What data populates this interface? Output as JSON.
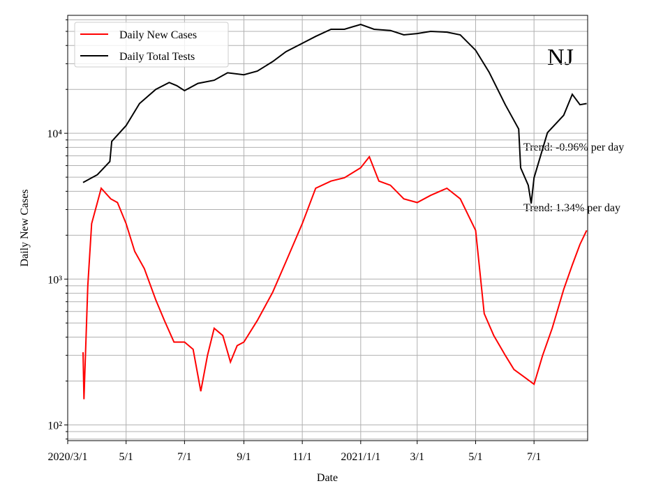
{
  "chart_data": {
    "type": "line",
    "ylabel": "Daily New Cases",
    "xlabel": "Date",
    "annotations": [
      "NJ",
      "Trend: -0.96% per day",
      "Trend: 1.34% per day"
    ],
    "log_y": true,
    "grid": true,
    "legend": "upper left",
    "xlim": [
      "2020-03-01",
      "2021-08-26"
    ],
    "xticks": [
      {
        "value": "2020-03-01",
        "label": "2020/3/1"
      },
      {
        "value": "2020-05-01",
        "label": "5/1"
      },
      {
        "value": "2020-07-01",
        "label": "7/1"
      },
      {
        "value": "2020-09-01",
        "label": "9/1"
      },
      {
        "value": "2020-11-01",
        "label": "11/1"
      },
      {
        "value": "2021-01-01",
        "label": "2021/1/1"
      },
      {
        "value": "2021-03-01",
        "label": "3/1"
      },
      {
        "value": "2021-05-01",
        "label": "5/1"
      },
      {
        "value": "2021-07-01",
        "label": "7/1"
      }
    ],
    "ylim": [
      78,
      64400
    ],
    "yticks": [
      {
        "value": 100,
        "label": "10²"
      },
      {
        "value": 1000,
        "label": "10³"
      },
      {
        "value": 10000,
        "label": "10⁴"
      }
    ],
    "yminorticks": [
      80,
      90,
      200,
      300,
      400,
      500,
      600,
      700,
      800,
      900,
      2000,
      3000,
      4000,
      5000,
      6000,
      7000,
      8000,
      9000,
      20000,
      30000,
      40000,
      50000,
      60000
    ],
    "series": [
      {
        "name": "Daily New Cases",
        "color": "#ff0000",
        "x": [
          "2020-03-17",
          "2020-03-18",
          "2020-03-22",
          "2020-03-26",
          "2020-04-01",
          "2020-04-05",
          "2020-04-15",
          "2020-04-22",
          "2020-05-01",
          "2020-05-10",
          "2020-05-20",
          "2020-06-01",
          "2020-06-10",
          "2020-06-20",
          "2020-07-01",
          "2020-07-10",
          "2020-07-18",
          "2020-07-25",
          "2020-08-01",
          "2020-08-10",
          "2020-08-18",
          "2020-08-25",
          "2020-09-01",
          "2020-09-15",
          "2020-10-01",
          "2020-10-15",
          "2020-11-01",
          "2020-11-15",
          "2020-12-01",
          "2020-12-15",
          "2021-01-01",
          "2021-01-10",
          "2021-01-20",
          "2021-02-01",
          "2021-02-15",
          "2021-03-01",
          "2021-03-15",
          "2021-04-01",
          "2021-04-15",
          "2021-05-01",
          "2021-05-10",
          "2021-05-20",
          "2021-06-01",
          "2021-06-10",
          "2021-06-20",
          "2021-07-01",
          "2021-07-10",
          "2021-07-20",
          "2021-08-01",
          "2021-08-10",
          "2021-08-18",
          "2021-08-25"
        ],
        "values": [
          315,
          150,
          900,
          2400,
          3350,
          4200,
          3550,
          3350,
          2400,
          1550,
          1180,
          720,
          520,
          370,
          370,
          330,
          170,
          300,
          460,
          410,
          270,
          350,
          370,
          520,
          810,
          1320,
          2400,
          4200,
          4700,
          4950,
          5800,
          6900,
          4700,
          4400,
          3550,
          3350,
          3750,
          4200,
          3550,
          2160,
          580,
          410,
          300,
          240,
          215,
          190,
          300,
          460,
          850,
          1250,
          1730,
          2160
        ]
      },
      {
        "name": "Daily Total Tests",
        "color": "#000000",
        "x": [
          "2020-03-17",
          "2020-04-01",
          "2020-04-14",
          "2020-04-16",
          "2020-05-01",
          "2020-05-15",
          "2020-06-01",
          "2020-06-15",
          "2020-06-23",
          "2020-07-01",
          "2020-07-15",
          "2020-08-01",
          "2020-08-15",
          "2020-09-01",
          "2020-09-15",
          "2020-10-01",
          "2020-10-15",
          "2020-11-01",
          "2020-11-15",
          "2020-12-01",
          "2020-12-15",
          "2021-01-01",
          "2021-01-15",
          "2021-02-01",
          "2021-02-15",
          "2021-03-01",
          "2021-03-15",
          "2021-04-01",
          "2021-04-15",
          "2021-05-01",
          "2021-05-15",
          "2021-06-01",
          "2021-06-15",
          "2021-06-17",
          "2021-06-25",
          "2021-06-28",
          "2021-07-01",
          "2021-07-15",
          "2021-08-01",
          "2021-08-10",
          "2021-08-18",
          "2021-08-25"
        ],
        "values": [
          4600,
          5200,
          6400,
          8800,
          11300,
          16000,
          20000,
          22300,
          21200,
          19600,
          22000,
          23100,
          26000,
          25200,
          26700,
          31000,
          36300,
          41400,
          46200,
          51700,
          51700,
          55800,
          51700,
          50700,
          47300,
          48300,
          50000,
          49400,
          47300,
          37100,
          26300,
          15700,
          10700,
          5800,
          4400,
          3300,
          4950,
          10100,
          13300,
          18500,
          15700,
          16000
        ]
      }
    ]
  }
}
